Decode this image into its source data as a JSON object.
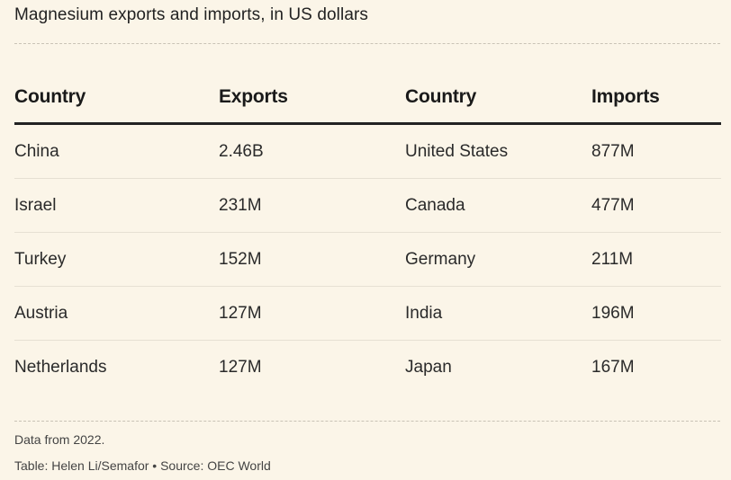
{
  "chart_data": {
    "type": "table",
    "title": "Magnesium exports and imports, in US dollars",
    "columns": [
      "Country",
      "Exports",
      "Country",
      "Imports"
    ],
    "rows": [
      [
        "China",
        "2.46B",
        "United States",
        "877M"
      ],
      [
        "Israel",
        "231M",
        "Canada",
        "477M"
      ],
      [
        "Turkey",
        "152M",
        "Germany",
        "211M"
      ],
      [
        "Austria",
        "127M",
        "India",
        "196M"
      ],
      [
        "Netherlands",
        "127M",
        "Japan",
        "167M"
      ]
    ],
    "note": "Data from 2022.",
    "credit": "Table: Helen Li/Semafor • Source: OEC World"
  }
}
